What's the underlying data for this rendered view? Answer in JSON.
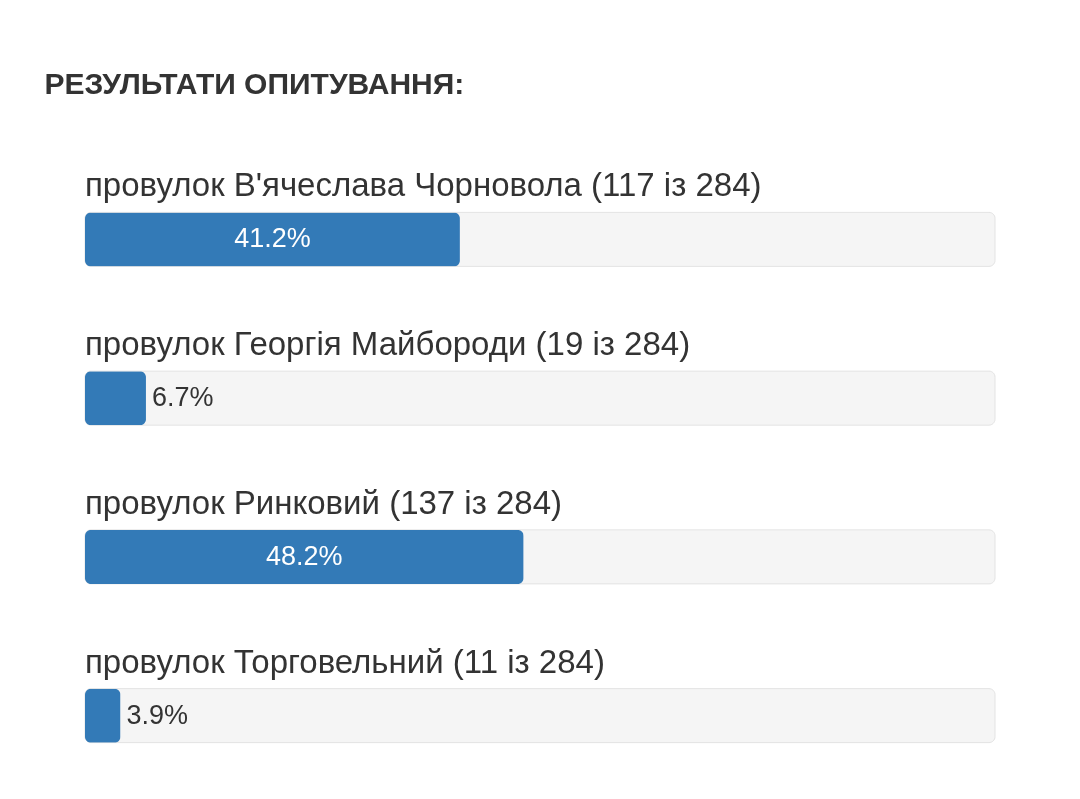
{
  "chart_data": {
    "type": "bar",
    "orientation": "horizontal",
    "title": "РЕЗУЛЬТАТИ ОПИТУВАННЯ:",
    "categories": [
      "провулок В'ячеслава Чорновола (117 із 284)",
      "провулок Георгія Майбороди (19 із 284)",
      "провулок Ринковий (137 із 284)",
      "провулок Торговельний (11 із 284)"
    ],
    "values": [
      41.2,
      6.7,
      48.2,
      3.9
    ],
    "value_labels": [
      "41.2%",
      "6.7%",
      "48.2%",
      "3.9%"
    ],
    "color": "#337ab7",
    "xlim": [
      0,
      100
    ],
    "tick_labels": false
  }
}
